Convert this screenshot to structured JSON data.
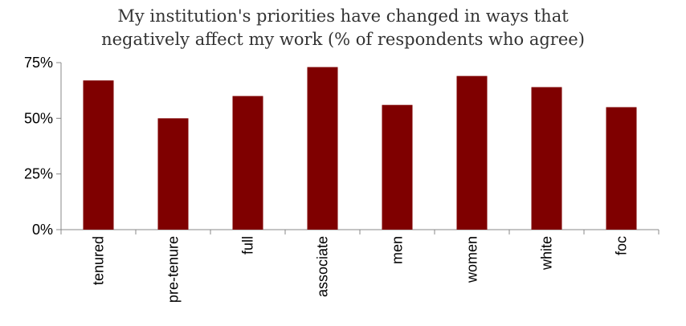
{
  "chart_data": {
    "type": "bar",
    "title_lines": [
      "My institution's priorities have changed in ways that",
      "negatively affect my work (% of respondents who agree)"
    ],
    "categories": [
      "tenured",
      "pre-tenure",
      "full",
      "associate",
      "men",
      "women",
      "white",
      "foc"
    ],
    "values": [
      67,
      50,
      60,
      73,
      56,
      69,
      64,
      55
    ],
    "ylim": [
      0,
      75
    ],
    "yticks": [
      0,
      25,
      50,
      75
    ],
    "ytick_labels": [
      "0%",
      "25%",
      "50%",
      "75%"
    ],
    "xlabel": "",
    "ylabel": "",
    "bar_color": "#7f0000",
    "grid": false
  }
}
